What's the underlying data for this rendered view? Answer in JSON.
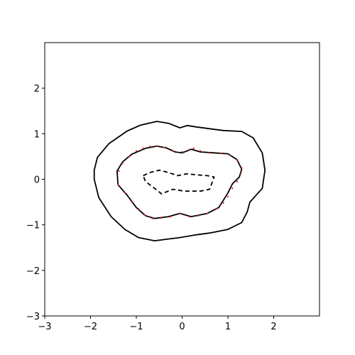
{
  "chart_data": {
    "type": "line",
    "title": "",
    "xlabel": "",
    "ylabel": "",
    "xlim": [
      -3,
      3
    ],
    "ylim": [
      -3,
      3
    ],
    "xticks": [
      -3,
      -2,
      -1,
      0,
      1,
      2
    ],
    "yticks": [
      -3,
      -2,
      -1,
      0,
      1,
      2
    ],
    "xtick_labels": [
      "−3",
      "−2",
      "−1",
      "0",
      "1",
      "2"
    ],
    "ytick_labels": [
      "−3",
      "−2",
      "−1",
      "0",
      "1",
      "2"
    ],
    "grid": false,
    "legend": "none",
    "colors": {
      "outline": "#000000",
      "samples": "#d62728"
    },
    "series": [
      {
        "style": "solid",
        "color": "#000000",
        "closed": true,
        "points": [
          [
            -1.92,
            0.2
          ],
          [
            -1.85,
            0.48
          ],
          [
            -1.6,
            0.78
          ],
          [
            -1.2,
            1.06
          ],
          [
            -0.9,
            1.19
          ],
          [
            -0.55,
            1.27
          ],
          [
            -0.3,
            1.23
          ],
          [
            -0.05,
            1.13
          ],
          [
            0.12,
            1.18
          ],
          [
            0.3,
            1.15
          ],
          [
            0.6,
            1.11
          ],
          [
            0.9,
            1.07
          ],
          [
            1.3,
            1.05
          ],
          [
            1.55,
            0.91
          ],
          [
            1.75,
            0.58
          ],
          [
            1.81,
            0.2
          ],
          [
            1.75,
            -0.2
          ],
          [
            1.48,
            -0.5
          ],
          [
            1.42,
            -0.72
          ],
          [
            1.3,
            -0.95
          ],
          [
            1.0,
            -1.1
          ],
          [
            0.6,
            -1.18
          ],
          [
            0.3,
            -1.22
          ],
          [
            -0.05,
            -1.28
          ],
          [
            -0.3,
            -1.31
          ],
          [
            -0.6,
            -1.35
          ],
          [
            -0.95,
            -1.28
          ],
          [
            -1.25,
            -1.1
          ],
          [
            -1.55,
            -0.82
          ],
          [
            -1.82,
            -0.4
          ],
          [
            -1.92,
            0.0
          ]
        ]
      },
      {
        "style": "solid",
        "color": "#000000",
        "closed": true,
        "points": [
          [
            -1.42,
            0.18
          ],
          [
            -1.3,
            0.38
          ],
          [
            -1.1,
            0.55
          ],
          [
            -0.8,
            0.68
          ],
          [
            -0.55,
            0.73
          ],
          [
            -0.35,
            0.69
          ],
          [
            -0.15,
            0.6
          ],
          [
            0.0,
            0.58
          ],
          [
            0.2,
            0.66
          ],
          [
            0.4,
            0.6
          ],
          [
            0.7,
            0.58
          ],
          [
            1.0,
            0.56
          ],
          [
            1.2,
            0.43
          ],
          [
            1.3,
            0.22
          ],
          [
            1.25,
            0.05
          ],
          [
            1.1,
            -0.1
          ],
          [
            1.0,
            -0.3
          ],
          [
            0.8,
            -0.62
          ],
          [
            0.55,
            -0.75
          ],
          [
            0.2,
            -0.82
          ],
          [
            -0.05,
            -0.75
          ],
          [
            -0.3,
            -0.82
          ],
          [
            -0.6,
            -0.86
          ],
          [
            -0.8,
            -0.8
          ],
          [
            -1.0,
            -0.62
          ],
          [
            -1.2,
            -0.35
          ],
          [
            -1.4,
            -0.12
          ]
        ]
      },
      {
        "style": "dashed",
        "color": "#000000",
        "closed": true,
        "points": [
          [
            -0.85,
            0.08
          ],
          [
            -0.7,
            0.15
          ],
          [
            -0.5,
            0.2
          ],
          [
            -0.3,
            0.15
          ],
          [
            -0.1,
            0.08
          ],
          [
            0.1,
            0.12
          ],
          [
            0.3,
            0.1
          ],
          [
            0.55,
            0.08
          ],
          [
            0.7,
            0.05
          ],
          [
            0.6,
            -0.22
          ],
          [
            0.4,
            -0.26
          ],
          [
            0.05,
            -0.26
          ],
          [
            -0.2,
            -0.22
          ],
          [
            -0.45,
            -0.32
          ],
          [
            -0.6,
            -0.2
          ],
          [
            -0.8,
            -0.05
          ]
        ]
      }
    ],
    "markers": {
      "color": "#d62728",
      "points": [
        [
          -1.38,
          0.18
        ],
        [
          -1.3,
          0.35
        ],
        [
          -1.15,
          0.5
        ],
        [
          -1.0,
          0.62
        ],
        [
          -0.85,
          0.68
        ],
        [
          -0.7,
          0.72
        ],
        [
          -0.55,
          0.73
        ],
        [
          -0.4,
          0.7
        ],
        [
          -0.2,
          0.62
        ],
        [
          0.0,
          0.6
        ],
        [
          0.15,
          0.65
        ],
        [
          0.25,
          0.68
        ],
        [
          0.4,
          0.62
        ],
        [
          0.6,
          0.58
        ],
        [
          0.85,
          0.57
        ],
        [
          1.05,
          0.52
        ],
        [
          1.2,
          0.42
        ],
        [
          1.3,
          0.25
        ],
        [
          1.28,
          0.12
        ],
        [
          1.2,
          -0.05
        ],
        [
          1.1,
          -0.2
        ],
        [
          1.0,
          -0.38
        ],
        [
          0.9,
          -0.52
        ],
        [
          0.75,
          -0.65
        ],
        [
          0.55,
          -0.75
        ],
        [
          0.35,
          -0.8
        ],
        [
          0.15,
          -0.82
        ],
        [
          -0.05,
          -0.75
        ],
        [
          -0.25,
          -0.82
        ],
        [
          -0.45,
          -0.85
        ],
        [
          -0.65,
          -0.86
        ],
        [
          -0.82,
          -0.78
        ],
        [
          -0.95,
          -0.65
        ],
        [
          -1.1,
          -0.5
        ],
        [
          -1.25,
          -0.3
        ],
        [
          -1.4,
          -0.12
        ]
      ]
    }
  }
}
